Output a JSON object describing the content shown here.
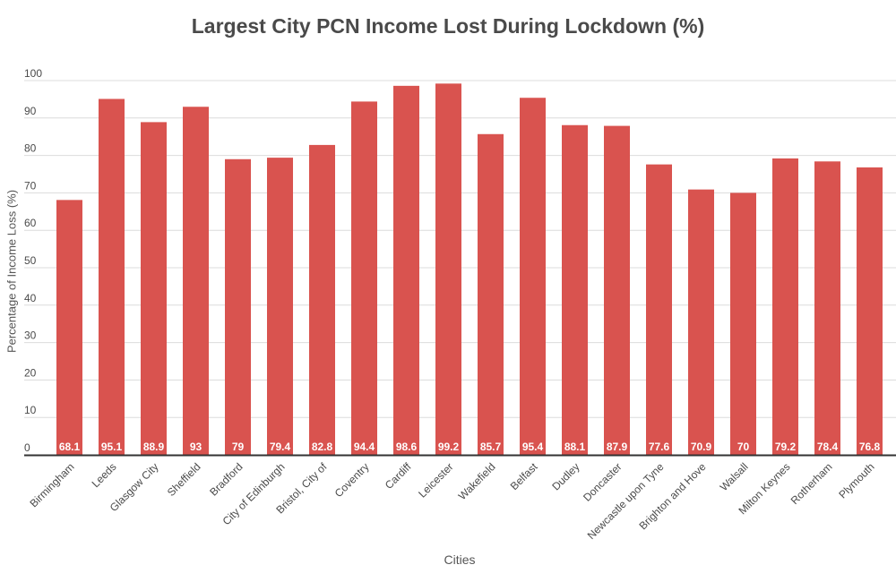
{
  "chart_data": {
    "type": "bar",
    "title": "Largest City PCN Income Lost During Lockdown (%)",
    "xlabel": "Cities",
    "ylabel": "Percentage of Income Loss (%)",
    "ylim": [
      0,
      100
    ],
    "yticks": [
      0,
      10,
      20,
      30,
      40,
      50,
      60,
      70,
      80,
      90,
      100
    ],
    "grid": true,
    "bar_color": "#d9534f",
    "categories": [
      "Birmingham",
      "Leeds",
      "Glasgow City",
      "Sheffield",
      "Bradford",
      "City of Edinburgh",
      "Bristol, City of",
      "Coventry",
      "Cardiff",
      "Leicester",
      "Wakefield",
      "Belfast",
      "Dudley",
      "Doncaster",
      "Newcastle upon Tyne",
      "Brighton and Hove",
      "Walsall",
      "Milton Keynes",
      "Rotherham",
      "Plymouth"
    ],
    "values": [
      68.1,
      95.1,
      88.9,
      93,
      79,
      79.4,
      82.8,
      94.4,
      98.6,
      99.2,
      85.7,
      95.4,
      88.1,
      87.9,
      77.6,
      70.9,
      70,
      79.2,
      78.4,
      76.8
    ],
    "data_labels": [
      "68.1",
      "95.1",
      "88.9",
      "93",
      "79",
      "79.4",
      "82.8",
      "94.4",
      "98.6",
      "99.2",
      "85.7",
      "95.4",
      "88.1",
      "87.9",
      "77.6",
      "70.9",
      "70",
      "79.2",
      "78.4",
      "76.8"
    ]
  }
}
